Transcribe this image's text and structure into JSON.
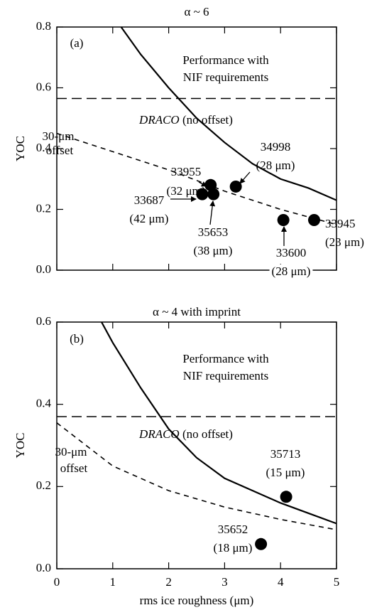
{
  "chart_data": [
    {
      "type": "line",
      "title": "α ~ 6",
      "panel_label": "(a)",
      "y_label": "YOC",
      "xlim": [
        0,
        5
      ],
      "xticks": [
        0,
        1,
        2,
        3,
        4,
        5
      ],
      "xtick_labels": false,
      "ylim": [
        0,
        0.8
      ],
      "yticks": [
        {
          "value": 0,
          "label": "0.0"
        },
        0.2,
        0.4,
        0.6,
        0.8
      ],
      "reference_line": {
        "value": 0.565,
        "style": "dashed",
        "label": [
          "Performance with",
          "NIF requirements"
        ]
      },
      "series": [
        {
          "name": "DRACO (no offset)",
          "style": "solid",
          "color": "#000000",
          "x": [
            1.15,
            1.5,
            2,
            2.5,
            3,
            3.5,
            4,
            4.5,
            5
          ],
          "values": [
            0.8,
            0.71,
            0.6,
            0.5,
            0.42,
            0.35,
            0.3,
            0.27,
            0.23
          ]
        },
        {
          "label": [
            "30-μm",
            "offset"
          ],
          "style": "dashed",
          "color": "#000000",
          "x": [
            0,
            1,
            2,
            3,
            4,
            5
          ],
          "values": [
            0.45,
            0.39,
            0.33,
            0.26,
            0.2,
            0.15
          ]
        },
        {
          "style": "marker",
          "color": "#000000",
          "x": [
            2.75,
            3.2,
            2.6,
            2.8,
            4.05,
            4.6
          ],
          "values": [
            0.28,
            0.275,
            0.25,
            0.25,
            0.165,
            0.165
          ],
          "labels": [
            "33955",
            "34998",
            "33687",
            "35653",
            "33600",
            "33945"
          ],
          "details": [
            "(32 μm)",
            "(28 μm)",
            "(42 μm)",
            "(38 μm)",
            "(28 μm)",
            "(23 μm)"
          ]
        }
      ]
    },
    {
      "type": "line",
      "title": "α ~ 4 with imprint",
      "panel_label": "(b)",
      "y_label": "YOC",
      "x_label": "rms ice roughness (μm)",
      "xlim": [
        0,
        5
      ],
      "xticks": [
        0,
        1,
        2,
        3,
        4,
        5
      ],
      "xtick_labels": true,
      "ylim": [
        0,
        0.6
      ],
      "yticks": [
        {
          "value": 0,
          "label": "0.0"
        },
        0.2,
        0.4,
        0.6
      ],
      "reference_line": {
        "value": 0.37,
        "style": "dashed",
        "label": [
          "Performance with",
          "NIF requirements"
        ]
      },
      "series": [
        {
          "name": "DRACO (no offset)",
          "style": "solid",
          "color": "#000000",
          "x": [
            0.8,
            1,
            1.5,
            2,
            2.5,
            3,
            3.5,
            4,
            4.5,
            5
          ],
          "values": [
            0.6,
            0.55,
            0.44,
            0.34,
            0.27,
            0.22,
            0.19,
            0.16,
            0.135,
            0.11
          ]
        },
        {
          "label": [
            "30-μm",
            "offset"
          ],
          "style": "dashed",
          "color": "#000000",
          "x": [
            0,
            1,
            2,
            3,
            4,
            5
          ],
          "values": [
            0.355,
            0.25,
            0.19,
            0.15,
            0.12,
            0.095
          ]
        },
        {
          "style": "marker",
          "color": "#000000",
          "x": [
            4.1,
            3.65
          ],
          "values": [
            0.175,
            0.06
          ],
          "labels": [
            "35713",
            "35652"
          ],
          "details": [
            "(15 μm)",
            "(18 μm)"
          ]
        }
      ]
    }
  ]
}
